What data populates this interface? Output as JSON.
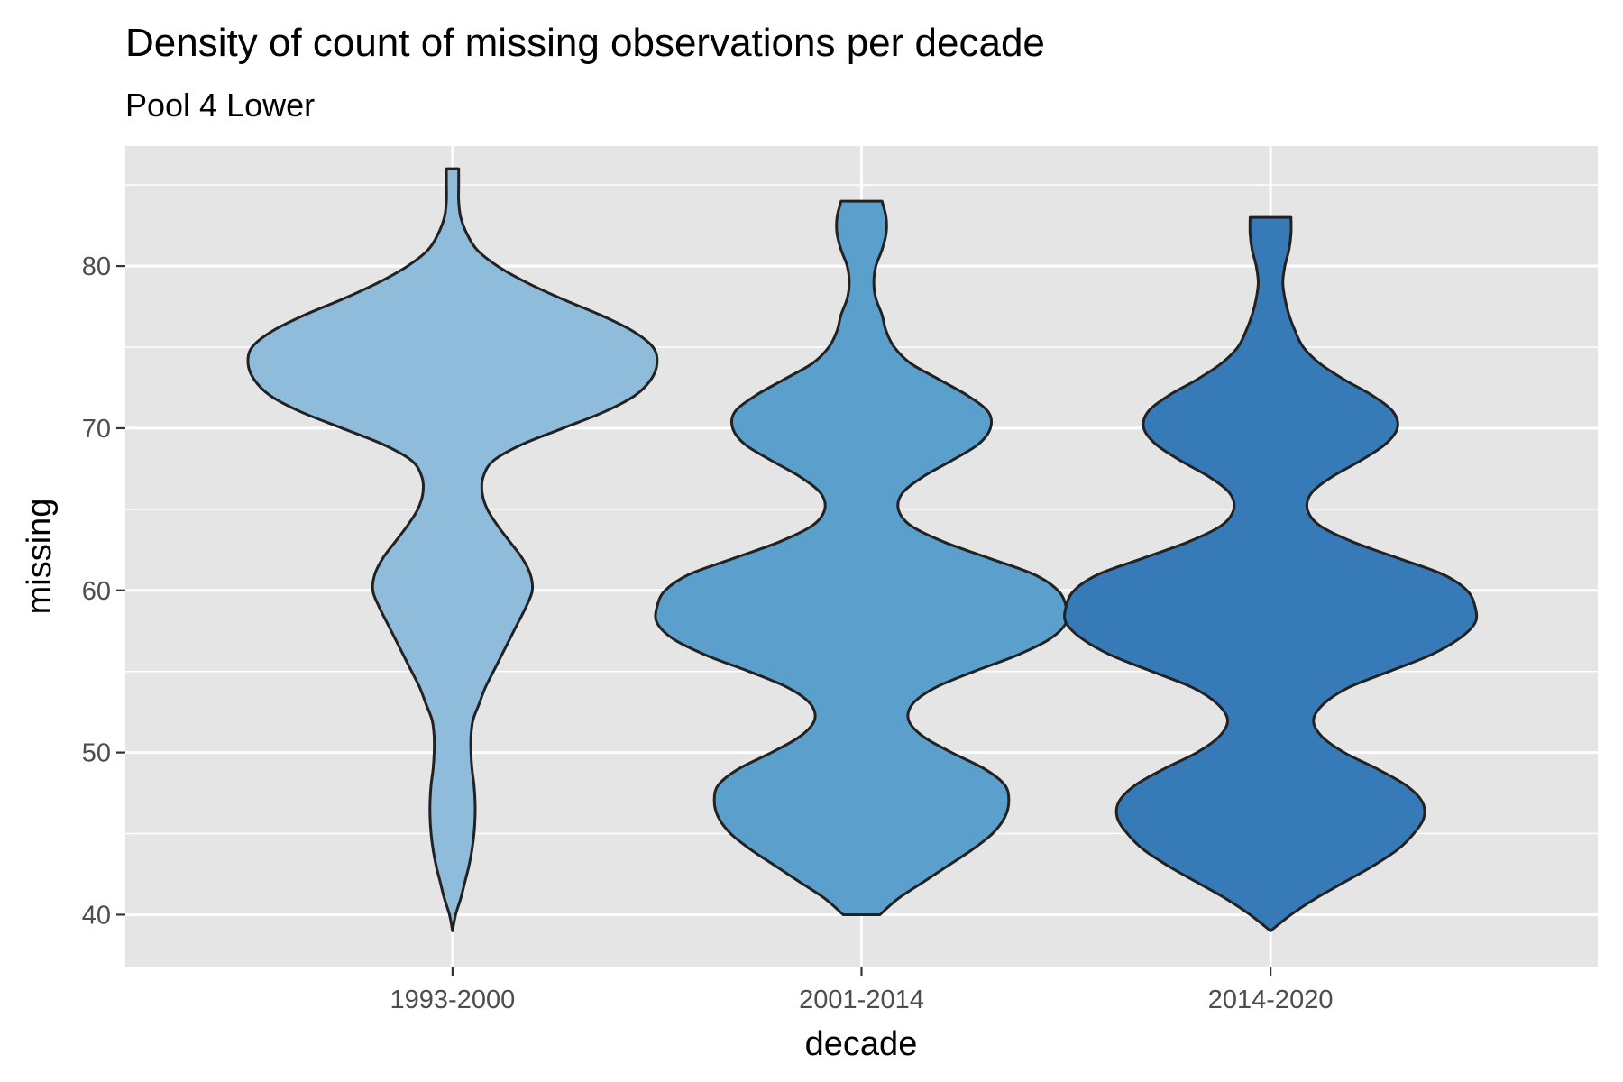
{
  "chart_data": {
    "type": "violin",
    "title": "Density of count of missing observations per decade",
    "subtitle": "Pool 4 Lower",
    "xlabel": "decade",
    "ylabel": "missing",
    "categories": [
      "1993-2000",
      "2001-2014",
      "2014-2020"
    ],
    "ylim": [
      36.8,
      87.4
    ],
    "y_ticks": [
      40,
      50,
      60,
      70,
      80
    ],
    "grid": true,
    "legend": "none",
    "series": [
      {
        "category": "1993-2000",
        "fill": "#8fbcdb",
        "min": 39,
        "max": 86,
        "density_profile": [
          [
            39,
            0.0
          ],
          [
            40,
            0.015
          ],
          [
            41,
            0.04
          ],
          [
            42,
            0.06
          ],
          [
            43,
            0.08
          ],
          [
            44,
            0.095
          ],
          [
            45,
            0.105
          ],
          [
            46,
            0.11
          ],
          [
            47,
            0.11
          ],
          [
            48,
            0.105
          ],
          [
            49,
            0.095
          ],
          [
            50,
            0.09
          ],
          [
            51,
            0.09
          ],
          [
            52,
            0.1
          ],
          [
            53,
            0.13
          ],
          [
            54,
            0.16
          ],
          [
            55,
            0.2
          ],
          [
            56,
            0.24
          ],
          [
            57,
            0.28
          ],
          [
            58,
            0.32
          ],
          [
            59,
            0.36
          ],
          [
            60,
            0.39
          ],
          [
            61,
            0.38
          ],
          [
            62,
            0.34
          ],
          [
            63,
            0.28
          ],
          [
            64,
            0.22
          ],
          [
            65,
            0.17
          ],
          [
            66,
            0.145
          ],
          [
            67,
            0.15
          ],
          [
            68,
            0.2
          ],
          [
            69,
            0.34
          ],
          [
            70,
            0.54
          ],
          [
            71,
            0.74
          ],
          [
            72,
            0.89
          ],
          [
            73,
            0.97
          ],
          [
            74,
            1.0
          ],
          [
            75,
            0.98
          ],
          [
            76,
            0.88
          ],
          [
            77,
            0.72
          ],
          [
            78,
            0.53
          ],
          [
            79,
            0.36
          ],
          [
            80,
            0.22
          ],
          [
            81,
            0.12
          ],
          [
            82,
            0.07
          ],
          [
            83,
            0.04
          ],
          [
            84,
            0.03
          ],
          [
            85,
            0.03
          ],
          [
            86,
            0.03
          ]
        ]
      },
      {
        "category": "2001-2014",
        "fill": "#5b9fcc",
        "min": 40,
        "max": 84,
        "density_profile": [
          [
            40,
            0.09
          ],
          [
            41,
            0.18
          ],
          [
            42,
            0.3
          ],
          [
            43,
            0.42
          ],
          [
            44,
            0.54
          ],
          [
            45,
            0.64
          ],
          [
            46,
            0.7
          ],
          [
            47,
            0.72
          ],
          [
            48,
            0.7
          ],
          [
            49,
            0.6
          ],
          [
            50,
            0.44
          ],
          [
            51,
            0.3
          ],
          [
            52,
            0.23
          ],
          [
            53,
            0.25
          ],
          [
            54,
            0.36
          ],
          [
            55,
            0.55
          ],
          [
            56,
            0.76
          ],
          [
            57,
            0.92
          ],
          [
            58,
            1.0
          ],
          [
            59,
            1.0
          ],
          [
            60,
            0.96
          ],
          [
            61,
            0.84
          ],
          [
            62,
            0.62
          ],
          [
            63,
            0.4
          ],
          [
            64,
            0.24
          ],
          [
            65,
            0.18
          ],
          [
            66,
            0.2
          ],
          [
            67,
            0.3
          ],
          [
            68,
            0.44
          ],
          [
            69,
            0.57
          ],
          [
            70,
            0.63
          ],
          [
            71,
            0.62
          ],
          [
            72,
            0.52
          ],
          [
            73,
            0.38
          ],
          [
            74,
            0.24
          ],
          [
            75,
            0.16
          ],
          [
            76,
            0.12
          ],
          [
            77,
            0.1
          ],
          [
            78,
            0.07
          ],
          [
            79,
            0.06
          ],
          [
            80,
            0.07
          ],
          [
            81,
            0.1
          ],
          [
            82,
            0.12
          ],
          [
            83,
            0.12
          ],
          [
            84,
            0.1
          ]
        ]
      },
      {
        "category": "2014-2020",
        "fill": "#377ab8",
        "min": 39,
        "max": 83,
        "density_profile": [
          [
            39,
            0.0
          ],
          [
            40,
            0.1
          ],
          [
            41,
            0.22
          ],
          [
            42,
            0.36
          ],
          [
            43,
            0.5
          ],
          [
            44,
            0.62
          ],
          [
            45,
            0.7
          ],
          [
            46,
            0.75
          ],
          [
            47,
            0.74
          ],
          [
            48,
            0.66
          ],
          [
            49,
            0.52
          ],
          [
            50,
            0.36
          ],
          [
            51,
            0.25
          ],
          [
            52,
            0.21
          ],
          [
            53,
            0.26
          ],
          [
            54,
            0.38
          ],
          [
            55,
            0.58
          ],
          [
            56,
            0.78
          ],
          [
            57,
            0.92
          ],
          [
            58,
            1.0
          ],
          [
            59,
            1.0
          ],
          [
            60,
            0.96
          ],
          [
            61,
            0.84
          ],
          [
            62,
            0.62
          ],
          [
            63,
            0.4
          ],
          [
            64,
            0.24
          ],
          [
            65,
            0.18
          ],
          [
            66,
            0.2
          ],
          [
            67,
            0.3
          ],
          [
            68,
            0.44
          ],
          [
            69,
            0.56
          ],
          [
            70,
            0.62
          ],
          [
            71,
            0.6
          ],
          [
            72,
            0.5
          ],
          [
            73,
            0.36
          ],
          [
            74,
            0.24
          ],
          [
            75,
            0.16
          ],
          [
            76,
            0.12
          ],
          [
            77,
            0.09
          ],
          [
            78,
            0.07
          ],
          [
            79,
            0.06
          ],
          [
            80,
            0.07
          ],
          [
            81,
            0.09
          ],
          [
            82,
            0.1
          ],
          [
            83,
            0.1
          ]
        ]
      }
    ],
    "colors": {
      "panel_background": "#e5e5e5",
      "grid": "#ffffff",
      "outline": "#222222"
    }
  }
}
